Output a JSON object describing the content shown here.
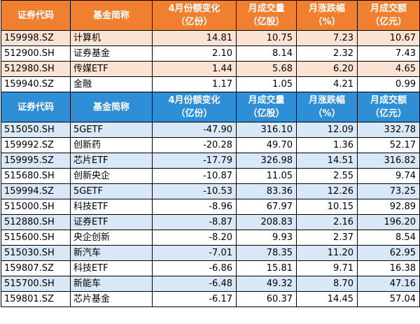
{
  "tables": [
    {
      "header_color": "#f07f2f",
      "headers": [
        [
          "证券代码",
          ""
        ],
        [
          "基金简称",
          ""
        ],
        [
          "4月份额变化",
          "（亿份）"
        ],
        [
          "月成交量",
          "（亿股）"
        ],
        [
          "月涨跌幅",
          "（%）"
        ],
        [
          "月成交额",
          "（亿元）"
        ]
      ],
      "rows": [
        [
          "159998.SZ",
          "计算机",
          "14.81",
          "10.75",
          "7.23",
          "10.67"
        ],
        [
          "512900.SH",
          "证券基金",
          "2.10",
          "8.14",
          "2.32",
          "7.43"
        ],
        [
          "512980.SH",
          "传媒ETF",
          "1.44",
          "5.68",
          "6.20",
          "4.65"
        ],
        [
          "159940.SZ",
          "金融",
          "1.17",
          "1.05",
          "4.21",
          "0.99"
        ]
      ]
    },
    {
      "header_color": "#2f8fd6",
      "headers": [
        [
          "证券代码",
          ""
        ],
        [
          "基金简称",
          ""
        ],
        [
          "4月份额变化",
          "（亿份）"
        ],
        [
          "月成交量",
          "（亿股）"
        ],
        [
          "月涨跌幅",
          "（%）"
        ],
        [
          "月成交额",
          "（亿元）"
        ]
      ],
      "rows": [
        [
          "515050.SH",
          "5GETF",
          "-47.90",
          "316.10",
          "12.09",
          "332.78"
        ],
        [
          "159992.SZ",
          "创新药",
          "-20.28",
          "49.70",
          "1.36",
          "52.17"
        ],
        [
          "159995.SZ",
          "芯片ETF",
          "-17.79",
          "326.98",
          "14.51",
          "316.82"
        ],
        [
          "515680.SH",
          "创新央企",
          "-10.87",
          "11.05",
          "2.55",
          "9.74"
        ],
        [
          "159994.SZ",
          "5GETF",
          "-10.53",
          "83.36",
          "12.26",
          "73.25"
        ],
        [
          "515000.SH",
          "科技ETF",
          "-8.96",
          "67.97",
          "10.15",
          "92.89"
        ],
        [
          "512880.SH",
          "证券ETF",
          "-8.87",
          "208.83",
          "2.16",
          "196.20"
        ],
        [
          "515600.SH",
          "央企创新",
          "-8.20",
          "9.93",
          "2.37",
          "8.54"
        ],
        [
          "515030.SH",
          "新汽车",
          "-7.01",
          "78.35",
          "11.20",
          "62.95"
        ],
        [
          "159807.SZ",
          "科技ETF",
          "-6.86",
          "15.81",
          "9.71",
          "16.38"
        ],
        [
          "515700.SH",
          "新能车",
          "-6.48",
          "49.32",
          "8.70",
          "47.16"
        ],
        [
          "159801.SZ",
          "芯片基金",
          "-6.17",
          "60.37",
          "14.45",
          "57.04"
        ]
      ]
    }
  ],
  "colors": {
    "orange_header": "#f07f2f",
    "blue_header": "#2f8fd6",
    "peach_band": "#fbe3d4",
    "blue_band": "#d9e8f6"
  }
}
